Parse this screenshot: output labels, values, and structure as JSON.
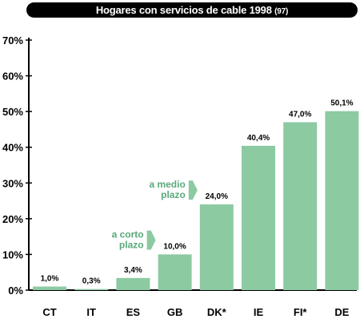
{
  "chart_data": {
    "type": "bar",
    "title": "Hogares con servicios de cable 1998",
    "title_note": "(97)",
    "categories": [
      "CT",
      "IT",
      "ES",
      "GB",
      "DK*",
      "IE",
      "FI*",
      "DE"
    ],
    "values": [
      1.0,
      0.3,
      3.4,
      10.0,
      24.0,
      40.4,
      47.0,
      50.1
    ],
    "data_labels": [
      "1,0%",
      "0,3%",
      "3,4%",
      "10,0%",
      "24,0%",
      "40,4%",
      "47,0%",
      "50,1%"
    ],
    "yticks": [
      0,
      10,
      20,
      30,
      40,
      50,
      60,
      70
    ],
    "ytick_labels": [
      "0%",
      "10%",
      "20%",
      "30%",
      "40%",
      "50%",
      "60%",
      "70%"
    ],
    "ylim": [
      0,
      70
    ],
    "xlabel": "",
    "ylabel": "",
    "grid": false,
    "bar_color": "#8ccaa1",
    "annotations": [
      {
        "lines": [
          "a corto",
          "plazo"
        ],
        "before_category": "GB",
        "y_value": 14,
        "arrow_color": "#8ccaa1"
      },
      {
        "lines": [
          "a medio",
          "plazo"
        ],
        "before_category": "DK*",
        "y_value": 28,
        "arrow_color": "#8ccaa1"
      }
    ]
  }
}
